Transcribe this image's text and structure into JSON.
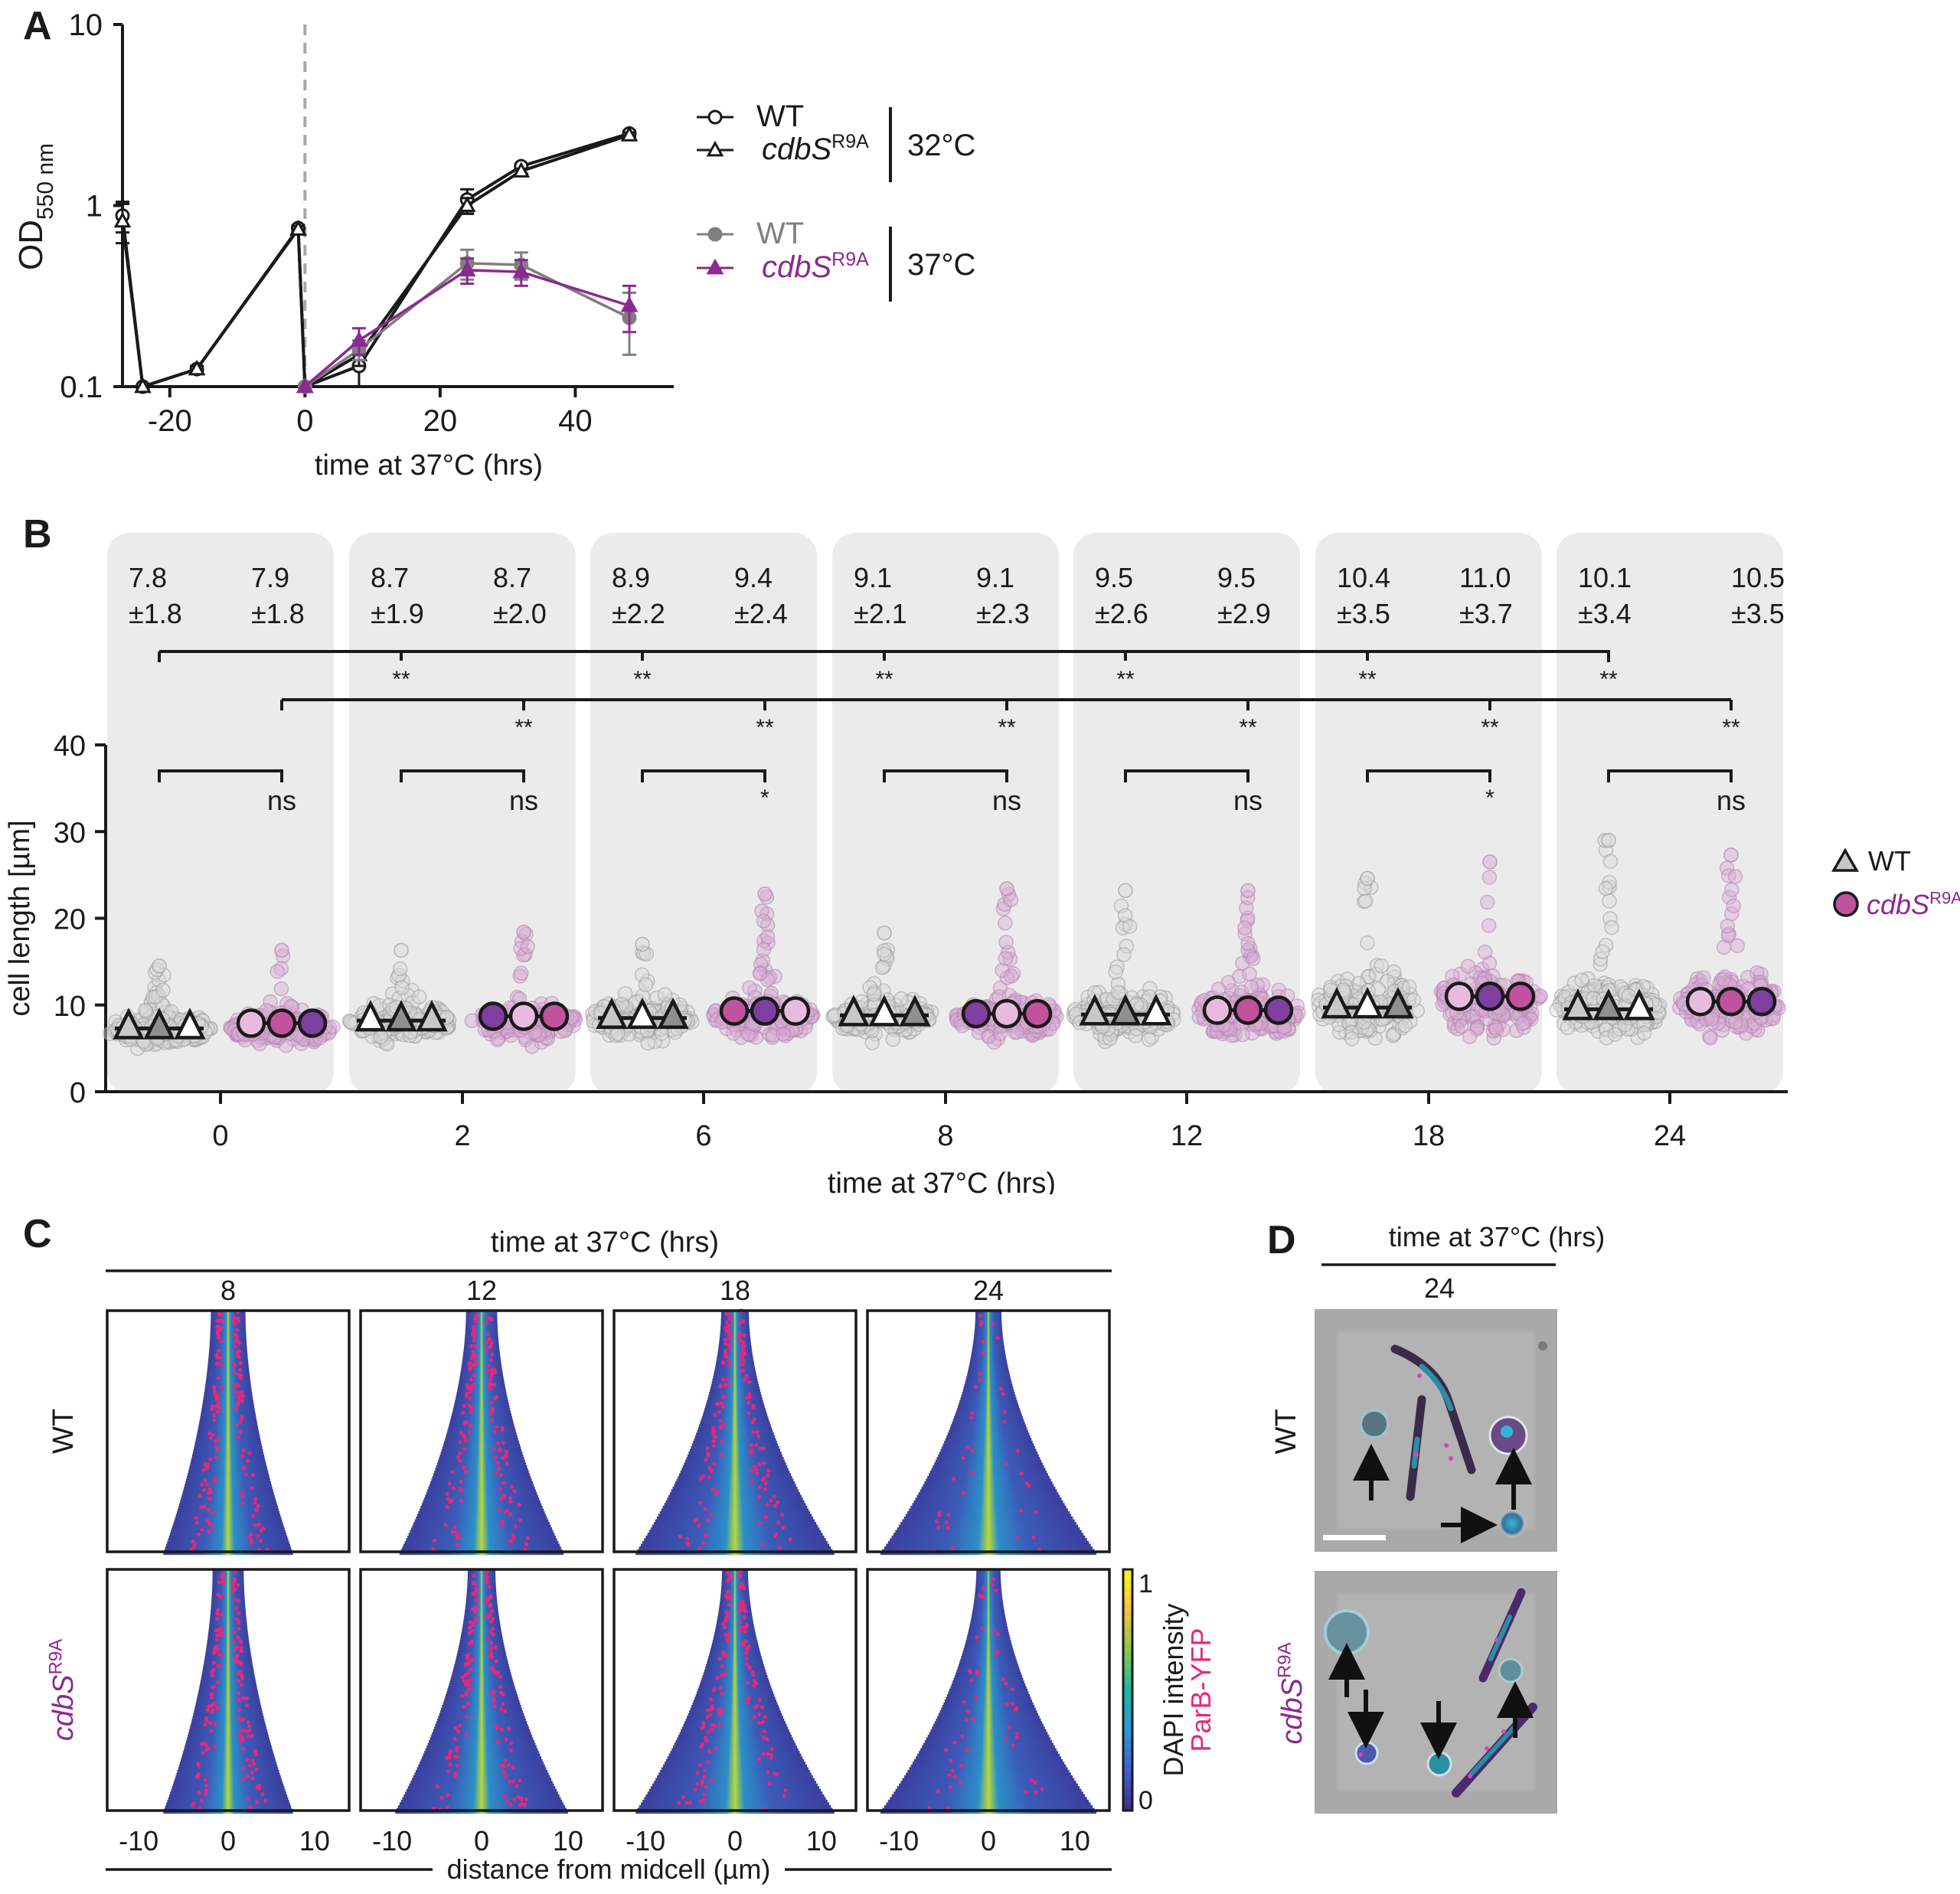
{
  "panels": {
    "A": {
      "letter": "A"
    },
    "B": {
      "letter": "B"
    },
    "C": {
      "letter": "C"
    },
    "D": {
      "letter": "D"
    }
  },
  "chart_data": [
    {
      "id": "A",
      "type": "line",
      "title": "",
      "xlabel": "time at 37°C (hrs)",
      "ylabel": "OD",
      "ylabel_sub": "550 nm",
      "yscale": "log",
      "xlim": [
        -28,
        50
      ],
      "ylim": [
        0.1,
        10
      ],
      "xticks": [
        -20,
        0,
        20,
        40
      ],
      "xtick_labels": [
        "-20",
        "0",
        "20",
        "40"
      ],
      "yticks": [
        0.1,
        1,
        10
      ],
      "ytick_labels": [
        "0.1",
        "1",
        "10"
      ],
      "vline_dashed_x": 0,
      "legend_position": "right",
      "legend_groups": [
        {
          "label": "32°C",
          "entries": [
            {
              "name": "WT",
              "italic": false,
              "sup": "",
              "marker": "open-circle",
              "color": "#1a1a1a"
            },
            {
              "name": "cdbS",
              "italic": true,
              "sup": "R9A",
              "marker": "open-triangle",
              "color": "#1a1a1a"
            }
          ]
        },
        {
          "label": "37°C",
          "entries": [
            {
              "name": "WT",
              "italic": false,
              "sup": "",
              "marker": "filled-circle",
              "color": "#7f7f7f"
            },
            {
              "name": "cdbS",
              "italic": true,
              "sup": "R9A",
              "marker": "filled-triangle",
              "color": "#8b2a8f"
            }
          ]
        }
      ],
      "series": [
        {
          "name": "WT 32°C",
          "marker": "open-circle",
          "color": "#1a1a1a",
          "segments": [
            {
              "x": [
                -27,
                -24,
                -16,
                -1
              ],
              "y": [
                0.88,
                0.1,
                0.125,
                0.75
              ],
              "err": [
                0.17,
                0,
                0.005,
                0.03
              ]
            },
            {
              "x": [
                -1,
                0,
                8,
                24,
                32,
                48
              ],
              "y": [
                0.75,
                0.1,
                0.13,
                1.08,
                1.65,
                2.5
              ],
              "err": [
                0.03,
                0,
                0.03,
                0.15,
                0.05,
                0.08
              ]
            }
          ]
        },
        {
          "name": "cdbS R9A 32°C",
          "marker": "open-triangle",
          "color": "#1a1a1a",
          "segments": [
            {
              "x": [
                -27,
                -24,
                -16,
                -1
              ],
              "y": [
                0.82,
                0.1,
                0.125,
                0.74
              ],
              "err": [
                0.2,
                0,
                0.005,
                0.03
              ]
            },
            {
              "x": [
                -1,
                0,
                8,
                24,
                32,
                48
              ],
              "y": [
                0.74,
                0.1,
                0.15,
                1.0,
                1.55,
                2.45
              ],
              "err": [
                0.03,
                0,
                0.02,
                0.1,
                0.05,
                0.08
              ]
            }
          ]
        },
        {
          "name": "WT 37°C",
          "marker": "filled-circle",
          "color": "#7f7f7f",
          "segments": [
            {
              "x": [
                0,
                8,
                24,
                32,
                48
              ],
              "y": [
                0.1,
                0.16,
                0.48,
                0.47,
                0.24
              ],
              "err": [
                0,
                0.02,
                0.09,
                0.08,
                0.09
              ]
            }
          ]
        },
        {
          "name": "cdbS R9A 37°C",
          "marker": "filled-triangle",
          "color": "#8b2a8f",
          "segments": [
            {
              "x": [
                0,
                8,
                24,
                32,
                48
              ],
              "y": [
                0.1,
                0.18,
                0.44,
                0.43,
                0.28
              ],
              "err": [
                0,
                0.03,
                0.07,
                0.07,
                0.08
              ]
            }
          ]
        }
      ]
    },
    {
      "id": "B",
      "type": "scatter",
      "subtype": "superplot-beeswarm",
      "xlabel": "time at 37°C (hrs)",
      "ylabel": "cell length [µm]",
      "ylim": [
        0,
        40
      ],
      "yticks": [
        0,
        10,
        20,
        30,
        40
      ],
      "ytick_labels": [
        "0",
        "10",
        "20",
        "30",
        "40"
      ],
      "categories": [
        "0",
        "2",
        "6",
        "8",
        "12",
        "18",
        "24"
      ],
      "legend_position": "right",
      "legend": [
        {
          "name": "WT",
          "italic": false,
          "sup": "",
          "marker": "triangle",
          "color": "#c8c8c8",
          "text_color": "#1a1a1a"
        },
        {
          "name": "cdbS",
          "italic": true,
          "sup": "R9A",
          "marker": "circle",
          "color": "#c0529e",
          "text_color": "#8b2a8f"
        }
      ],
      "series": [
        {
          "name": "WT",
          "mean": [
            7.8,
            8.7,
            8.9,
            9.1,
            9.5,
            10.4,
            10.1
          ],
          "sd": [
            1.8,
            1.9,
            2.2,
            2.1,
            2.6,
            3.5,
            3.4
          ],
          "max": [
            14.5,
            16.3,
            17.0,
            18.3,
            23.2,
            24.6,
            29.0
          ],
          "min": [
            3.3,
            4.2,
            4.0,
            4.3,
            3.8,
            4.0,
            4.3
          ],
          "replicate_medians": [
            [
              7.3,
              7.3,
              7.3
            ],
            [
              8.2,
              8.2,
              8.2
            ],
            [
              8.5,
              8.5,
              8.5
            ],
            [
              8.8,
              8.8,
              8.8
            ],
            [
              8.9,
              8.9,
              8.9
            ],
            [
              9.7,
              9.7,
              9.7
            ],
            [
              9.5,
              9.5,
              9.5
            ]
          ],
          "replicate_colors": [
            [
              "#c8c8c8",
              "#8f8f8f",
              "#ffffff"
            ],
            [
              "#ffffff",
              "#8f8f8f",
              "#c8c8c8"
            ],
            [
              "#c8c8c8",
              "#ffffff",
              "#8f8f8f"
            ],
            [
              "#c8c8c8",
              "#ffffff",
              "#8f8f8f"
            ],
            [
              "#c8c8c8",
              "#8f8f8f",
              "#ffffff"
            ],
            [
              "#c8c8c8",
              "#ffffff",
              "#8f8f8f"
            ],
            [
              "#c8c8c8",
              "#8f8f8f",
              "#ffffff"
            ]
          ]
        },
        {
          "name": "cdbS R9A",
          "mean": [
            7.9,
            8.7,
            9.4,
            9.1,
            9.5,
            11.0,
            10.5
          ],
          "sd": [
            1.8,
            2.0,
            2.4,
            2.3,
            2.9,
            3.7,
            3.5
          ],
          "max": [
            16.3,
            18.4,
            22.8,
            23.4,
            23.2,
            26.5,
            27.3
          ],
          "min": [
            3.6,
            3.5,
            4.2,
            3.6,
            3.2,
            3.9,
            4.1
          ],
          "replicate_medians": [
            [
              7.9,
              7.9,
              7.9
            ],
            [
              8.7,
              8.7,
              8.7
            ],
            [
              9.3,
              9.3,
              9.3
            ],
            [
              9.0,
              9.0,
              9.0
            ],
            [
              9.4,
              9.4,
              9.4
            ],
            [
              11.0,
              11.0,
              11.0
            ],
            [
              10.4,
              10.4,
              10.4
            ]
          ],
          "replicate_colors": [
            [
              "#e8bbde",
              "#c0529e",
              "#7f3f9f"
            ],
            [
              "#7f3f9f",
              "#e8bbde",
              "#c0529e"
            ],
            [
              "#c0529e",
              "#7f3f9f",
              "#e8bbde"
            ],
            [
              "#7f3f9f",
              "#e8bbde",
              "#c0529e"
            ],
            [
              "#e8bbde",
              "#c0529e",
              "#7f3f9f"
            ],
            [
              "#e8bbde",
              "#7f3f9f",
              "#c0529e"
            ],
            [
              "#e8bbde",
              "#c0529e",
              "#7f3f9f"
            ]
          ]
        }
      ],
      "stats_labels": [
        {
          "wt_mean": "7.8",
          "wt_sd": "±1.8",
          "mut_mean": "7.9",
          "mut_sd": "±1.8"
        },
        {
          "wt_mean": "8.7",
          "wt_sd": "±1.9",
          "mut_mean": "8.7",
          "mut_sd": "±2.0"
        },
        {
          "wt_mean": "8.9",
          "wt_sd": "±2.2",
          "mut_mean": "9.4",
          "mut_sd": "±2.4"
        },
        {
          "wt_mean": "9.1",
          "wt_sd": "±2.1",
          "mut_mean": "9.1",
          "mut_sd": "±2.3"
        },
        {
          "wt_mean": "9.5",
          "wt_sd": "±2.6",
          "mut_mean": "9.5",
          "mut_sd": "±2.9"
        },
        {
          "wt_mean": "10.4",
          "wt_sd": "±3.5",
          "mut_mean": "11.0",
          "mut_sd": "±3.7"
        },
        {
          "wt_mean": "10.1",
          "wt_sd": "±3.4",
          "mut_mean": "10.5",
          "mut_sd": "±3.5"
        }
      ],
      "significance": {
        "wt_vs_wt0": [
          "",
          "**",
          "**",
          "**",
          "**",
          "**",
          "**"
        ],
        "mut_vs_mut0": [
          "",
          "**",
          "**",
          "**",
          "**",
          "**",
          "**"
        ],
        "wt_vs_mut": [
          "ns",
          "ns",
          "*",
          "ns",
          "ns",
          "*",
          "ns"
        ]
      }
    },
    {
      "id": "C",
      "type": "heatmap",
      "subtype": "demograph",
      "title": "time at 37°C (hrs)",
      "columns": [
        "8",
        "12",
        "18",
        "24"
      ],
      "rows": [
        {
          "label": "WT",
          "italic": false,
          "sup": "",
          "color": "#1a1a1a"
        },
        {
          "label": "cdbS",
          "italic": true,
          "sup": "R9A",
          "color": "#8b2a8f"
        }
      ],
      "xlabel": "distance from midcell (µm)",
      "xlim": [
        -14,
        14
      ],
      "xticks": [
        -10,
        0,
        10
      ],
      "xtick_labels": [
        "-10",
        "0",
        "10"
      ],
      "half_width_top": [
        [
          2.0,
          1.8,
          1.6,
          1.5
        ],
        [
          1.8,
          1.6,
          1.5,
          1.4
        ]
      ],
      "half_width_bottom": [
        [
          7.5,
          9.5,
          11.5,
          12.5
        ],
        [
          7.5,
          10.0,
          11.5,
          12.5
        ]
      ],
      "colorbar": {
        "min": "0",
        "max": "1",
        "label": "DAPI intensity",
        "label2": "ParB-YFP",
        "label2_color": "#e6287a",
        "colors": [
          "#3e2d8a",
          "#3f5fd3",
          "#2a98d8",
          "#15b9a5",
          "#8ac948",
          "#f5c43b",
          "#f8f81f"
        ]
      },
      "parb_color": "#e6287a"
    }
  ],
  "panel_D": {
    "title": "time at 37°C (hrs)",
    "column": "24",
    "rows": [
      {
        "label": "WT",
        "italic": false,
        "sup": "",
        "color": "#1a1a1a"
      },
      {
        "label": "cdbS",
        "italic": true,
        "sup": "R9A",
        "color": "#8b2a8f"
      }
    ],
    "image_description": [
      "phase contrast + DAPI + ParB-YFP overlay, WT 24 h",
      "phase contrast + DAPI + ParB-YFP overlay, cdbS R9A 24 h"
    ],
    "scale_bar": true
  }
}
